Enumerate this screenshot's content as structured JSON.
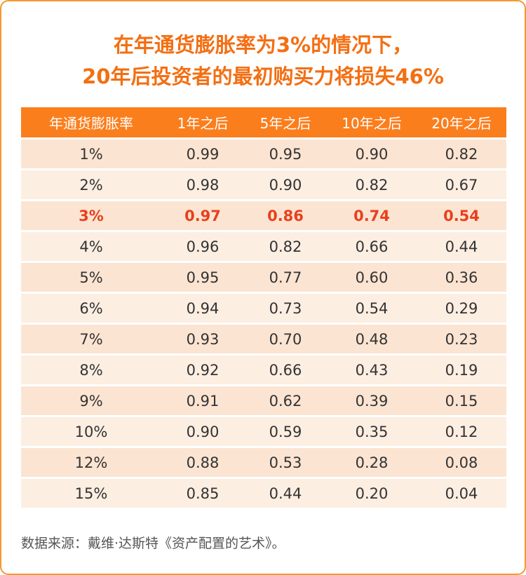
{
  "title": {
    "line1": "在年通货膨胀率为3%的情况下，",
    "line2": "20年后投资者的最初购买力将损失46%"
  },
  "table": {
    "headers": [
      "年通货膨胀率",
      "1年之后",
      "5年之后",
      "10年之后",
      "20年之后"
    ],
    "highlight_row": 2,
    "rows": [
      [
        "1%",
        "0.99",
        "0.95",
        "0.90",
        "0.82"
      ],
      [
        "2%",
        "0.98",
        "0.90",
        "0.82",
        "0.67"
      ],
      [
        "3%",
        "0.97",
        "0.86",
        "0.74",
        "0.54"
      ],
      [
        "4%",
        "0.96",
        "0.82",
        "0.66",
        "0.44"
      ],
      [
        "5%",
        "0.95",
        "0.77",
        "0.60",
        "0.36"
      ],
      [
        "6%",
        "0.94",
        "0.73",
        "0.54",
        "0.29"
      ],
      [
        "7%",
        "0.93",
        "0.70",
        "0.48",
        "0.23"
      ],
      [
        "8%",
        "0.92",
        "0.66",
        "0.43",
        "0.19"
      ],
      [
        "9%",
        "0.91",
        "0.62",
        "0.39",
        "0.15"
      ],
      [
        "10%",
        "0.90",
        "0.59",
        "0.35",
        "0.12"
      ],
      [
        "12%",
        "0.88",
        "0.53",
        "0.28",
        "0.08"
      ],
      [
        "15%",
        "0.85",
        "0.44",
        "0.20",
        "0.04"
      ]
    ]
  },
  "source": "数据来源：戴维·达斯特《资产配置的艺术》。",
  "colors": {
    "title": "#f36f13",
    "header_bg": "#fb7e1d",
    "row_odd": "#fce4d2",
    "row_even": "#fdeee2",
    "highlight_text": "#e8401c",
    "border": "#f39a2e"
  }
}
